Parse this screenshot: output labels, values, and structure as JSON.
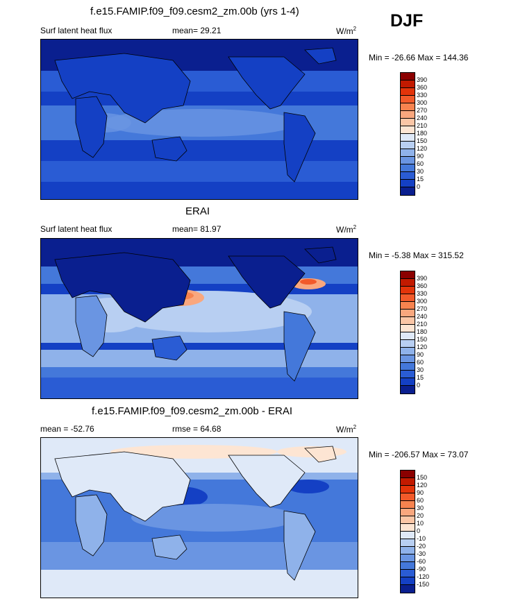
{
  "season": "DJF",
  "panels": [
    {
      "title": "f.e15.FAMIP.f09_f09.cesm2_zm.00b (yrs 1-4)",
      "left_label": "Surf latent heat flux",
      "mid_label": "mean=  29.21",
      "units": "W/m",
      "units_sup": "2",
      "minmax": "Min = -26.66 Max = 144.36",
      "colorbar": {
        "ticks": [
          "390",
          "360",
          "330",
          "300",
          "270",
          "240",
          "210",
          "180",
          "150",
          "120",
          "90",
          "60",
          "30",
          "15",
          "0"
        ],
        "colors": [
          "#8b0000",
          "#c21a00",
          "#e3340a",
          "#f25a2a",
          "#f7834f",
          "#f9a77e",
          "#fbc6a6",
          "#fde5d3",
          "#dfe9f8",
          "#b8cff2",
          "#8fb2ea",
          "#6a95e2",
          "#4478da",
          "#2a5cd4",
          "#1440c4",
          "#0a1f8f"
        ]
      }
    },
    {
      "title": "ERAI",
      "left_label": "Surf latent heat flux",
      "mid_label": "mean=  81.97",
      "units": "W/m",
      "units_sup": "2",
      "minmax": "Min =  -5.38 Max = 315.52",
      "colorbar": {
        "ticks": [
          "390",
          "360",
          "330",
          "300",
          "270",
          "240",
          "210",
          "180",
          "150",
          "120",
          "90",
          "60",
          "30",
          "15",
          "0"
        ],
        "colors": [
          "#8b0000",
          "#c21a00",
          "#e3340a",
          "#f25a2a",
          "#f7834f",
          "#f9a77e",
          "#fbc6a6",
          "#fde5d3",
          "#dfe9f8",
          "#b8cff2",
          "#8fb2ea",
          "#6a95e2",
          "#4478da",
          "#2a5cd4",
          "#1440c4",
          "#0a1f8f"
        ]
      }
    },
    {
      "title": "f.e15.FAMIP.f09_f09.cesm2_zm.00b - ERAI",
      "left_label": "mean = -52.76",
      "mid_label": "rmse =  64.68",
      "units": "W/m",
      "units_sup": "2",
      "minmax": "Min = -206.57 Max =  73.07",
      "colorbar": {
        "ticks": [
          "150",
          "120",
          "90",
          "60",
          "30",
          "20",
          "10",
          "0",
          "-10",
          "-20",
          "-30",
          "-60",
          "-90",
          "-120",
          "-150"
        ],
        "colors": [
          "#8b0000",
          "#c21a00",
          "#e3340a",
          "#f25a2a",
          "#f7834f",
          "#f9a77e",
          "#fbc6a6",
          "#fde5d3",
          "#dfe9f8",
          "#b8cff2",
          "#8fb2ea",
          "#6a95e2",
          "#4478da",
          "#2a5cd4",
          "#1440c4",
          "#0a1f8f"
        ]
      }
    }
  ]
}
